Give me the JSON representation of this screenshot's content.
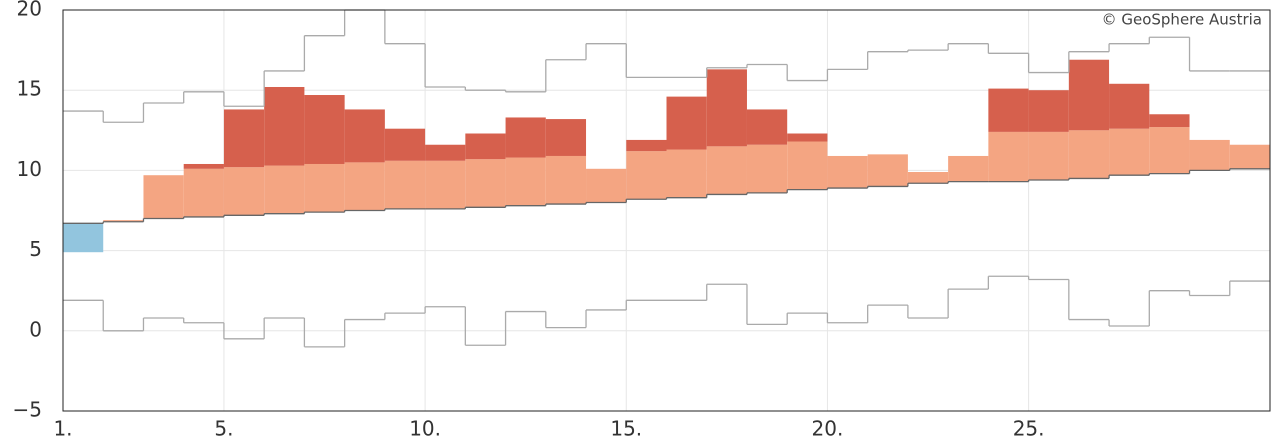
{
  "chart_data": {
    "type": "temperature-steps",
    "credit": "© GeoSphere Austria",
    "x": [
      1,
      2,
      3,
      4,
      5,
      6,
      7,
      8,
      9,
      10,
      11,
      12,
      13,
      14,
      15,
      16,
      17,
      18,
      19,
      20,
      21,
      22,
      23,
      24,
      25,
      26,
      27,
      28,
      29,
      30
    ],
    "mean": [
      6.7,
      6.8,
      7.0,
      7.1,
      7.2,
      7.3,
      7.4,
      7.5,
      7.6,
      7.6,
      7.7,
      7.8,
      7.9,
      8.0,
      8.2,
      8.3,
      8.5,
      8.6,
      8.8,
      8.9,
      9.0,
      9.2,
      9.3,
      9.3,
      9.4,
      9.5,
      9.7,
      9.8,
      10.0,
      10.1
    ],
    "threshold": [
      9.6,
      9.8,
      9.9,
      10.1,
      10.2,
      10.3,
      10.4,
      10.5,
      10.6,
      10.6,
      10.7,
      10.8,
      10.9,
      11.0,
      11.2,
      11.3,
      11.5,
      11.6,
      11.8,
      11.9,
      12.0,
      12.1,
      12.2,
      12.4,
      12.4,
      12.5,
      12.6,
      12.7,
      12.9,
      13.0
    ],
    "observed": [
      4.9,
      6.9,
      9.7,
      10.4,
      13.8,
      15.2,
      14.7,
      13.8,
      12.6,
      11.6,
      12.3,
      13.3,
      13.2,
      10.1,
      11.9,
      14.6,
      16.3,
      13.8,
      12.3,
      10.9,
      11.0,
      9.9,
      10.9,
      15.1,
      15.0,
      16.9,
      15.4,
      13.5,
      11.9,
      11.6
    ],
    "max": [
      13.7,
      13.0,
      14.2,
      14.9,
      14.0,
      16.2,
      18.4,
      20,
      17.9,
      15.2,
      15.0,
      14.9,
      16.9,
      17.9,
      15.8,
      15.8,
      16.4,
      16.6,
      15.6,
      16.3,
      17.4,
      17.5,
      17.9,
      17.3,
      16.1,
      17.4,
      17.9,
      18.3,
      16.2,
      16.2
    ],
    "min": [
      1.9,
      0.0,
      0.8,
      0.5,
      -0.5,
      0.8,
      -1.0,
      0.7,
      1.1,
      1.5,
      -0.9,
      1.2,
      0.2,
      1.3,
      1.9,
      1.9,
      2.9,
      0.4,
      1.1,
      0.5,
      1.6,
      0.8,
      2.6,
      3.4,
      3.2,
      0.7,
      0.3,
      2.5,
      2.2,
      3.1
    ],
    "colors": {
      "above": "#f4a582",
      "far_above": "#d6604d",
      "below": "#92c5de",
      "mean": "#666666",
      "range": "#aaaaaa"
    },
    "xlim": [
      1,
      31
    ],
    "xticks": [
      {
        "value": 1,
        "label": "1."
      },
      {
        "value": 5,
        "label": "5."
      },
      {
        "value": 10,
        "label": "10."
      },
      {
        "value": 15,
        "label": "15."
      },
      {
        "value": 20,
        "label": "20."
      },
      {
        "value": 25,
        "label": "25."
      }
    ],
    "ylim": [
      -5,
      20
    ],
    "yticks": [
      {
        "value": -5,
        "label": "−5"
      },
      0,
      5,
      10,
      15,
      20
    ],
    "grid": true
  }
}
